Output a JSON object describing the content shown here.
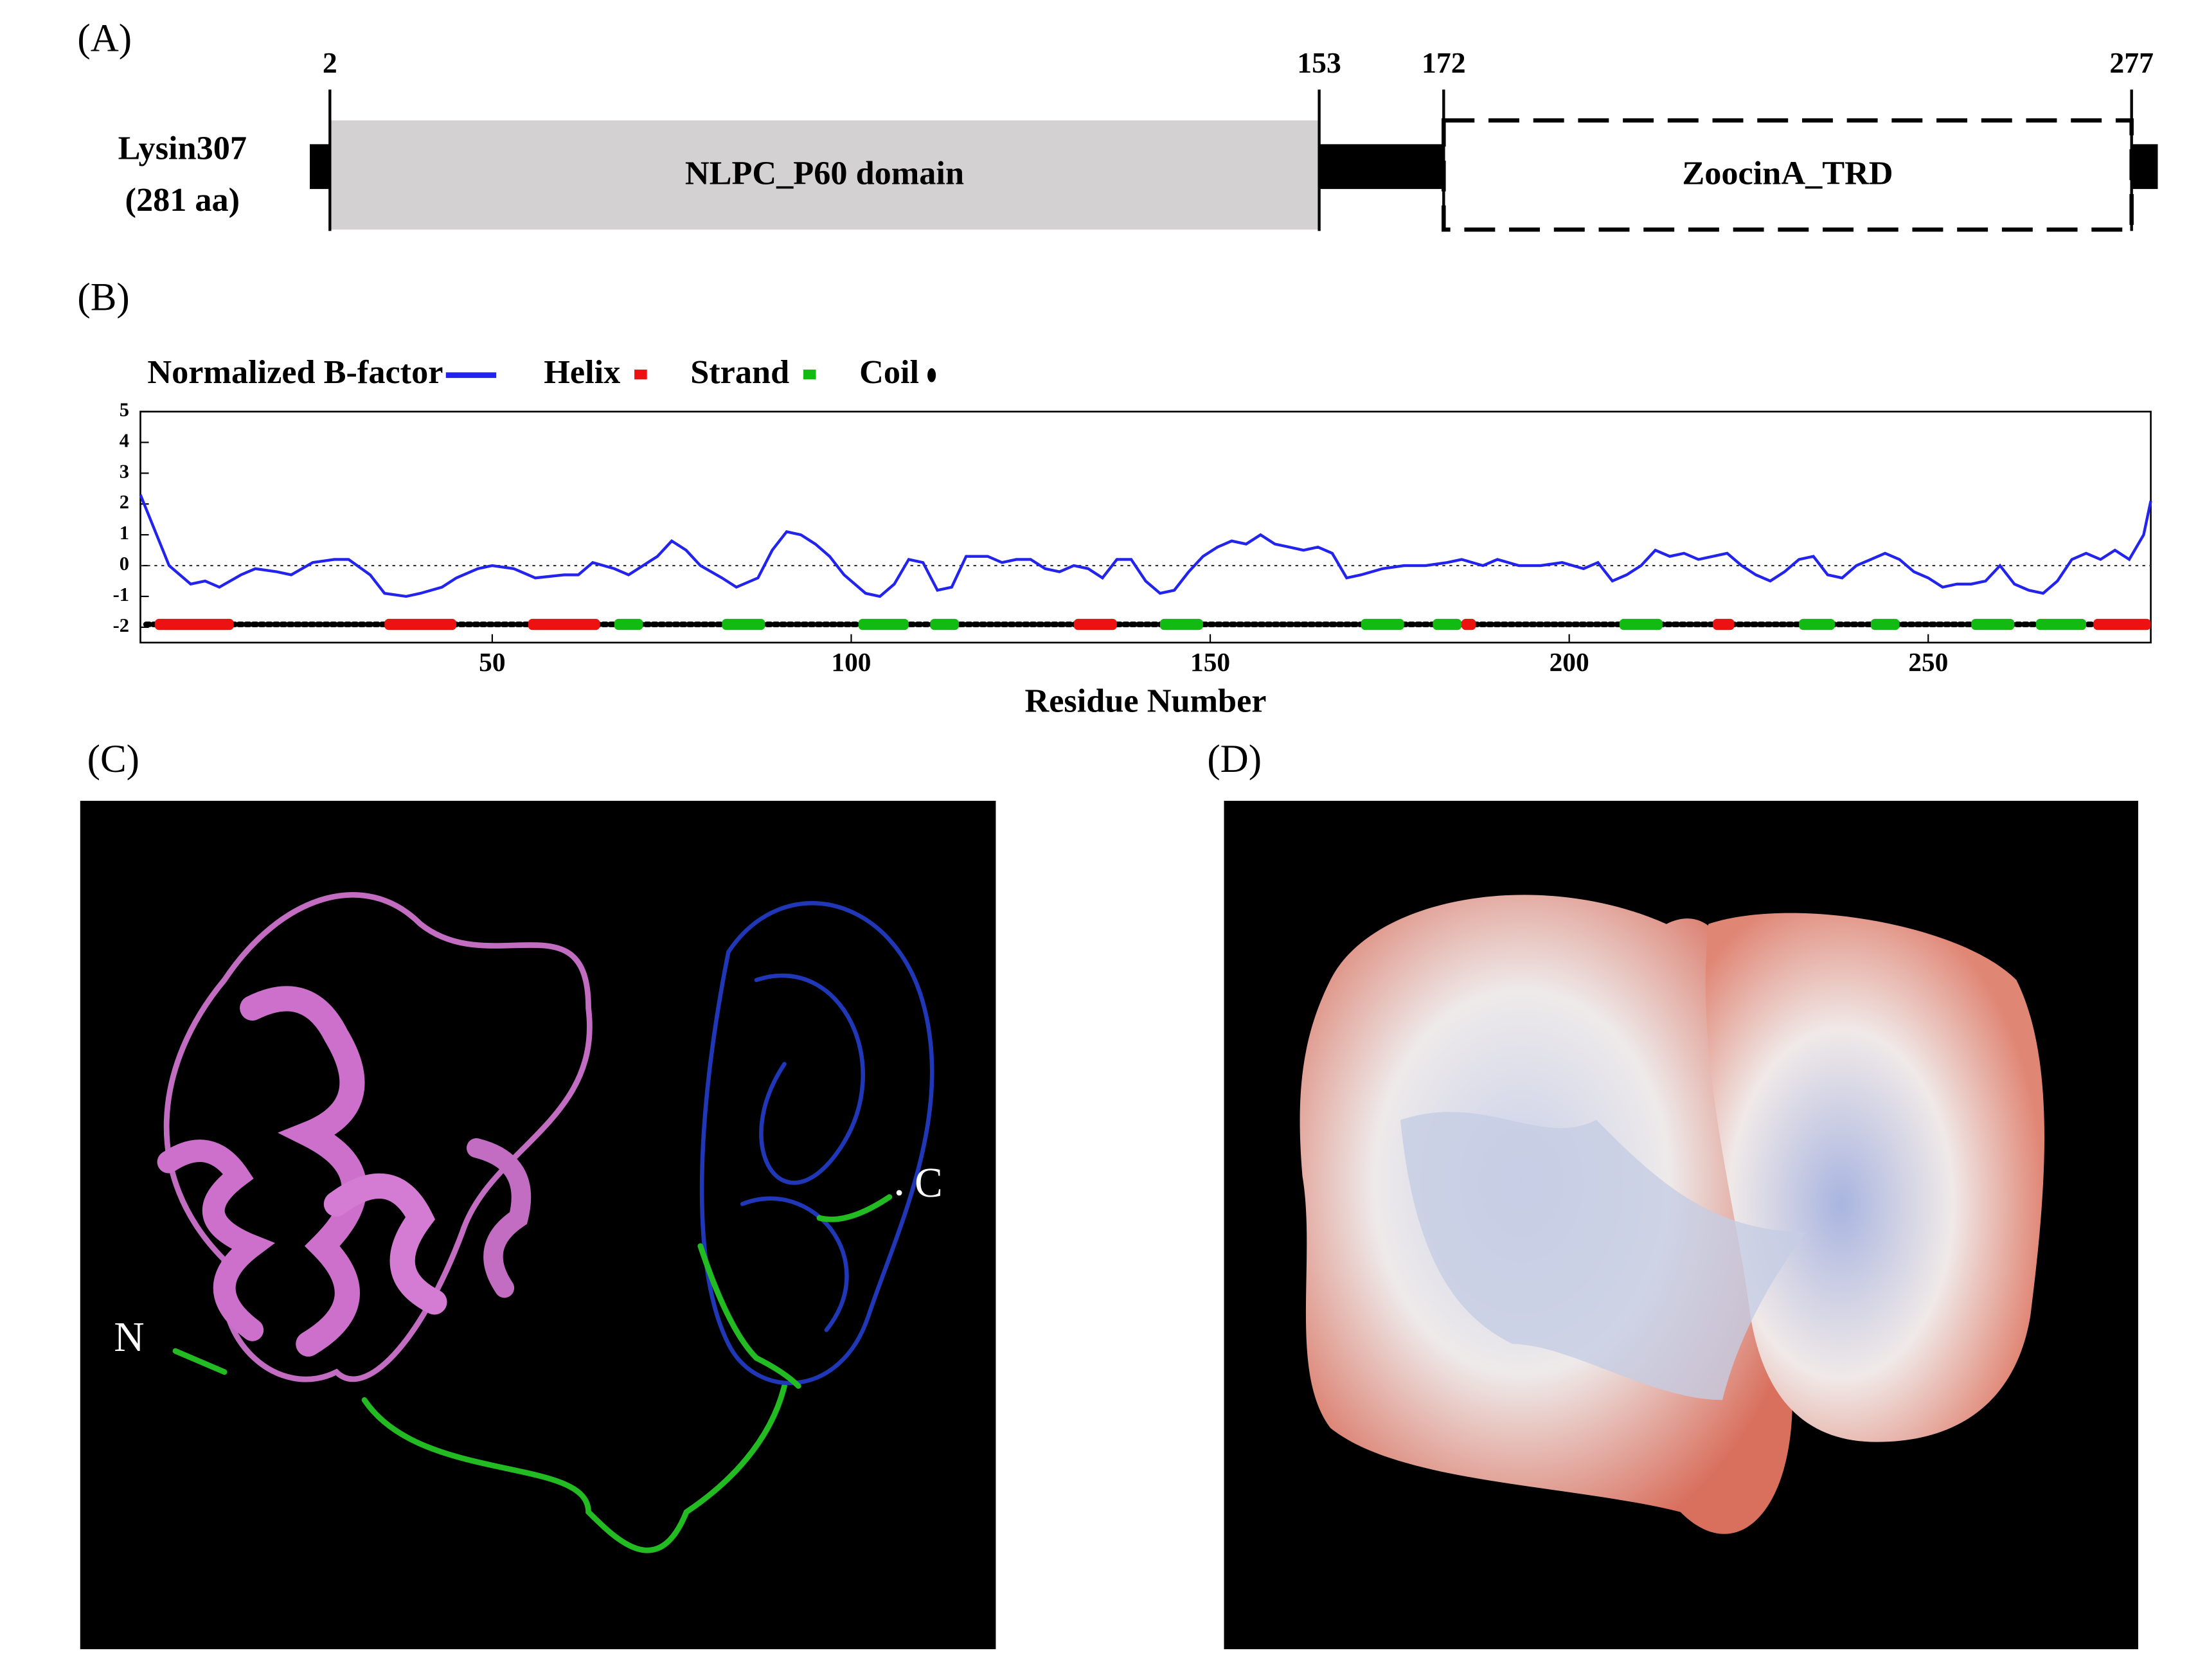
{
  "panel_labels": [
    "(A)",
    "(B)",
    "(C)",
    "(D)"
  ],
  "panel_a": {
    "protein_label": [
      "Lysin307",
      "(281 aa)"
    ],
    "length": 281,
    "domains": [
      {
        "name": "NLPC_P60 domain",
        "start": 2,
        "end": 153,
        "color": "#d3d1d1",
        "border": "solid"
      },
      {
        "name": "ZoocinA_TRD",
        "start": 172,
        "end": 277,
        "color": "#ffffff",
        "border": "dashed"
      }
    ]
  },
  "chart_data": {
    "type": "line",
    "x_label": "Residue Number",
    "xlim": [
      1,
      281
    ],
    "xticks": [
      50,
      100,
      150,
      200,
      250
    ],
    "ylim": [
      -2.5,
      5
    ],
    "yticks": [
      -2,
      -1,
      0,
      1,
      2,
      3,
      4,
      5
    ],
    "reference_line": 0,
    "series": [
      {
        "name": "Normalized B-factor",
        "color": "#2323ee",
        "x": [
          1,
          5,
          8,
          10,
          12,
          15,
          17,
          20,
          22,
          25,
          28,
          30,
          33,
          35,
          38,
          40,
          43,
          45,
          48,
          50,
          53,
          56,
          60,
          62,
          64,
          67,
          69,
          71,
          73,
          75,
          77,
          79,
          82,
          84,
          87,
          89,
          91,
          93,
          95,
          97,
          99,
          102,
          104,
          106,
          108,
          110,
          112,
          114,
          116,
          119,
          121,
          123,
          125,
          127,
          129,
          131,
          133,
          135,
          137,
          139,
          141,
          143,
          145,
          147,
          149,
          151,
          153,
          155,
          157,
          159,
          161,
          163,
          165,
          167,
          169,
          171,
          174,
          177,
          180,
          183,
          185,
          188,
          190,
          193,
          196,
          199,
          202,
          204,
          206,
          208,
          210,
          212,
          214,
          216,
          218,
          220,
          222,
          224,
          226,
          228,
          230,
          232,
          234,
          236,
          238,
          240,
          242,
          244,
          246,
          248,
          250,
          252,
          254,
          256,
          258,
          260,
          262,
          264,
          266,
          268,
          270,
          272,
          274,
          276,
          278,
          280,
          281
        ],
        "values": [
          2.3,
          0,
          -0.6,
          -0.5,
          -0.7,
          -0.3,
          -0.1,
          -0.2,
          -0.3,
          0.1,
          0.2,
          0.2,
          -0.3,
          -0.9,
          -1,
          -0.9,
          -0.7,
          -0.4,
          -0.1,
          0,
          -0.1,
          -0.4,
          -0.3,
          -0.3,
          0.1,
          -0.1,
          -0.3,
          0,
          0.3,
          0.8,
          0.5,
          0,
          -0.4,
          -0.7,
          -0.4,
          0.5,
          1.1,
          1,
          0.7,
          0.3,
          -0.3,
          -0.9,
          -1,
          -0.6,
          0.2,
          0.1,
          -0.8,
          -0.7,
          0.3,
          0.3,
          0.1,
          0.2,
          0.2,
          -0.1,
          -0.2,
          0,
          -0.1,
          -0.4,
          0.2,
          0.2,
          -0.5,
          -0.9,
          -0.8,
          -0.2,
          0.3,
          0.6,
          0.8,
          0.7,
          1,
          0.7,
          0.6,
          0.5,
          0.6,
          0.4,
          -0.4,
          -0.3,
          -0.1,
          0,
          0,
          0.1,
          0.2,
          0,
          0.2,
          0,
          0,
          0.1,
          -0.1,
          0.1,
          -0.5,
          -0.3,
          0,
          0.5,
          0.3,
          0.4,
          0.2,
          0.3,
          0.4,
          0,
          -0.3,
          -0.5,
          -0.2,
          0.2,
          0.3,
          -0.3,
          -0.4,
          0,
          0.2,
          0.4,
          0.2,
          -0.2,
          -0.4,
          -0.7,
          -0.6,
          -0.6,
          -0.5,
          0,
          -0.6,
          -0.8,
          -0.9,
          -0.5,
          0.2,
          0.4,
          0.2,
          0.5,
          0.2,
          1,
          2.1
        ]
      }
    ],
    "secondary_structure": [
      {
        "name": "Helix",
        "color": "#ee1111",
        "segments": [
          [
            3,
            14
          ],
          [
            35,
            45
          ],
          [
            55,
            65
          ],
          [
            131,
            137
          ],
          [
            185,
            187
          ],
          [
            220,
            223
          ],
          [
            273,
            281
          ]
        ]
      },
      {
        "name": "Strand",
        "color": "#11bb11",
        "segments": [
          [
            67,
            71
          ],
          [
            82,
            88
          ],
          [
            101,
            108
          ],
          [
            111,
            115
          ],
          [
            143,
            149
          ],
          [
            171,
            177
          ],
          [
            181,
            185
          ],
          [
            207,
            213
          ],
          [
            232,
            237
          ],
          [
            242,
            246
          ],
          [
            256,
            262
          ],
          [
            265,
            272
          ]
        ]
      },
      {
        "name": "Coil",
        "color": "#000000",
        "segments": []
      }
    ]
  },
  "structure_labels": [
    "N",
    "C"
  ]
}
